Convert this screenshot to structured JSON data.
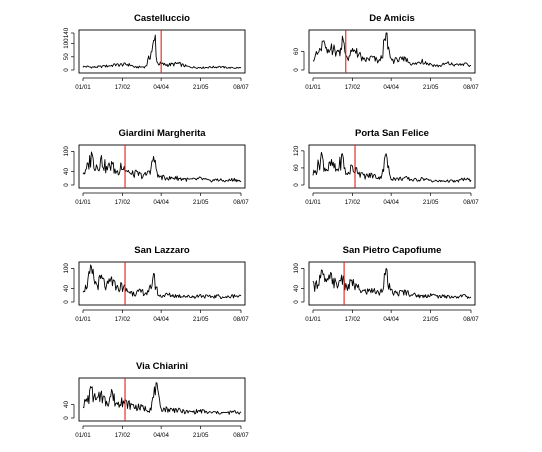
{
  "chart_data": [
    {
      "type": "line",
      "title": "Castelluccio",
      "x_ticks": [
        "01/01",
        "17/02",
        "04/04",
        "21/05",
        "08/07"
      ],
      "y_ticks": [
        "0",
        "50",
        "100",
        "140"
      ],
      "ylim": [
        0,
        140
      ],
      "marker_day": 93,
      "peaks": [
        [
          5,
          15
        ],
        [
          12,
          12
        ],
        [
          25,
          16
        ],
        [
          38,
          22
        ],
        [
          55,
          25
        ],
        [
          62,
          12
        ],
        [
          75,
          15
        ],
        [
          86,
          132
        ],
        [
          88,
          30
        ],
        [
          100,
          22
        ],
        [
          113,
          28
        ],
        [
          125,
          14
        ],
        [
          140,
          10
        ],
        [
          150,
          12
        ],
        [
          162,
          14
        ],
        [
          170,
          11
        ],
        [
          178,
          9
        ],
        [
          188,
          10
        ]
      ]
    },
    {
      "type": "line",
      "title": "De Amicis",
      "x_ticks": [
        "01/01",
        "17/02",
        "04/04",
        "21/05",
        "08/07"
      ],
      "y_ticks": [
        "0",
        "60"
      ],
      "ylim": [
        0,
        120
      ],
      "marker_day": 39,
      "peaks": [
        [
          3,
          50
        ],
        [
          8,
          70
        ],
        [
          13,
          95
        ],
        [
          17,
          55
        ],
        [
          22,
          85
        ],
        [
          30,
          60
        ],
        [
          35,
          110
        ],
        [
          40,
          45
        ],
        [
          46,
          60
        ],
        [
          52,
          70
        ],
        [
          60,
          35
        ],
        [
          70,
          45
        ],
        [
          80,
          30
        ],
        [
          87,
          125
        ],
        [
          92,
          40
        ],
        [
          100,
          35
        ],
        [
          110,
          40
        ],
        [
          120,
          20
        ],
        [
          130,
          35
        ],
        [
          140,
          20
        ],
        [
          150,
          15
        ],
        [
          160,
          25
        ],
        [
          170,
          18
        ],
        [
          180,
          22
        ],
        [
          188,
          15
        ]
      ]
    },
    {
      "type": "line",
      "title": "Giardini Margherita",
      "x_ticks": [
        "01/01",
        "17/02",
        "04/04",
        "21/05",
        "08/07"
      ],
      "y_ticks": [
        "0",
        "40",
        "100"
      ],
      "ylim": [
        0,
        110
      ],
      "marker_day": 50,
      "peaks": [
        [
          3,
          45
        ],
        [
          10,
          98
        ],
        [
          16,
          60
        ],
        [
          22,
          88
        ],
        [
          28,
          55
        ],
        [
          34,
          70
        ],
        [
          40,
          40
        ],
        [
          45,
          65
        ],
        [
          49,
          55
        ],
        [
          56,
          35
        ],
        [
          64,
          40
        ],
        [
          72,
          30
        ],
        [
          78,
          42
        ],
        [
          84,
          85
        ],
        [
          90,
          30
        ],
        [
          100,
          22
        ],
        [
          110,
          25
        ],
        [
          120,
          20
        ],
        [
          130,
          18
        ],
        [
          140,
          22
        ],
        [
          150,
          15
        ],
        [
          160,
          18
        ],
        [
          170,
          14
        ],
        [
          180,
          20
        ],
        [
          188,
          12
        ]
      ]
    },
    {
      "type": "line",
      "title": "Porta San Felice",
      "x_ticks": [
        "01/01",
        "17/02",
        "04/04",
        "21/05",
        "08/07"
      ],
      "y_ticks": [
        "0",
        "60",
        "120"
      ],
      "ylim": [
        0,
        130
      ],
      "marker_day": 50,
      "peaks": [
        [
          3,
          50
        ],
        [
          10,
          115
        ],
        [
          16,
          55
        ],
        [
          22,
          90
        ],
        [
          28,
          55
        ],
        [
          35,
          110
        ],
        [
          40,
          40
        ],
        [
          46,
          70
        ],
        [
          52,
          60
        ],
        [
          60,
          35
        ],
        [
          70,
          40
        ],
        [
          80,
          30
        ],
        [
          87,
          110
        ],
        [
          92,
          30
        ],
        [
          100,
          25
        ],
        [
          110,
          28
        ],
        [
          120,
          20
        ],
        [
          130,
          25
        ],
        [
          140,
          18
        ],
        [
          150,
          15
        ],
        [
          160,
          18
        ],
        [
          170,
          14
        ],
        [
          180,
          25
        ],
        [
          188,
          18
        ]
      ]
    },
    {
      "type": "line",
      "title": "San Lazzaro",
      "x_ticks": [
        "01/01",
        "17/02",
        "04/04",
        "21/05",
        "08/07"
      ],
      "y_ticks": [
        "0",
        "40",
        "100"
      ],
      "ylim": [
        0,
        110
      ],
      "marker_day": 50,
      "peaks": [
        [
          3,
          50
        ],
        [
          10,
          105
        ],
        [
          16,
          55
        ],
        [
          22,
          80
        ],
        [
          28,
          50
        ],
        [
          34,
          75
        ],
        [
          40,
          45
        ],
        [
          46,
          55
        ],
        [
          52,
          40
        ],
        [
          60,
          30
        ],
        [
          70,
          35
        ],
        [
          78,
          30
        ],
        [
          84,
          85
        ],
        [
          90,
          20
        ],
        [
          100,
          25
        ],
        [
          110,
          22
        ],
        [
          120,
          20
        ],
        [
          130,
          18
        ],
        [
          140,
          22
        ],
        [
          150,
          18
        ],
        [
          160,
          20
        ],
        [
          170,
          16
        ],
        [
          180,
          22
        ],
        [
          188,
          18
        ]
      ]
    },
    {
      "type": "line",
      "title": "San Pietro Capofiume",
      "x_ticks": [
        "01/01",
        "17/02",
        "04/04",
        "21/05",
        "08/07"
      ],
      "y_ticks": [
        "0",
        "40",
        "100"
      ],
      "ylim": [
        0,
        110
      ],
      "marker_day": 37,
      "peaks": [
        [
          3,
          55
        ],
        [
          10,
          95
        ],
        [
          16,
          60
        ],
        [
          22,
          85
        ],
        [
          28,
          55
        ],
        [
          34,
          80
        ],
        [
          40,
          45
        ],
        [
          46,
          65
        ],
        [
          52,
          50
        ],
        [
          60,
          35
        ],
        [
          70,
          40
        ],
        [
          80,
          30
        ],
        [
          87,
          100
        ],
        [
          92,
          35
        ],
        [
          100,
          30
        ],
        [
          110,
          35
        ],
        [
          120,
          25
        ],
        [
          130,
          20
        ],
        [
          140,
          25
        ],
        [
          150,
          18
        ],
        [
          160,
          20
        ],
        [
          170,
          16
        ],
        [
          180,
          22
        ],
        [
          188,
          15
        ]
      ]
    },
    {
      "type": "line",
      "title": "Via Chiarini",
      "x_ticks": [
        "01/01",
        "17/02",
        "04/04",
        "21/05",
        "08/07"
      ],
      "y_ticks": [
        "0",
        "40"
      ],
      "ylim": [
        0,
        110
      ],
      "marker_day": 50,
      "peaks": [
        [
          3,
          50
        ],
        [
          10,
          90
        ],
        [
          16,
          55
        ],
        [
          22,
          80
        ],
        [
          28,
          50
        ],
        [
          34,
          85
        ],
        [
          40,
          45
        ],
        [
          46,
          60
        ],
        [
          52,
          50
        ],
        [
          60,
          40
        ],
        [
          70,
          35
        ],
        [
          80,
          30
        ],
        [
          87,
          105
        ],
        [
          92,
          35
        ],
        [
          100,
          30
        ],
        [
          110,
          28
        ],
        [
          120,
          22
        ],
        [
          130,
          20
        ],
        [
          140,
          25
        ],
        [
          150,
          18
        ],
        [
          160,
          20
        ],
        [
          170,
          16
        ],
        [
          180,
          22
        ],
        [
          188,
          18
        ]
      ]
    }
  ]
}
